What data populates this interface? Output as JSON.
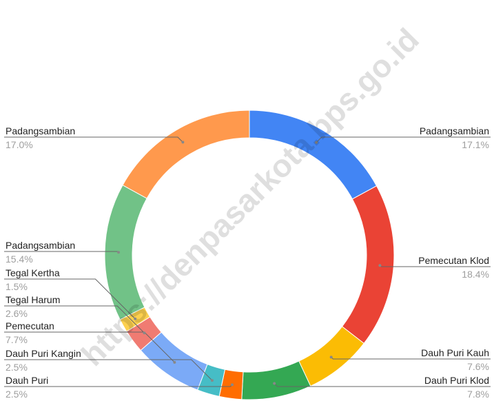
{
  "chart_data": {
    "type": "donut",
    "watermark": "https://denpasarkota.bps.go.id",
    "categories": [
      "Padangsambian",
      "Pemecutan Klod",
      "Dauh Puri Kauh",
      "Dauh Puri Klod",
      "Dauh Puri",
      "Dauh Puri Kangin",
      "Pemecutan",
      "Tegal Harum",
      "Tegal Kertha",
      "Padangsambian",
      "Padangsambian"
    ],
    "values": [
      17.1,
      18.4,
      7.6,
      7.8,
      2.5,
      2.5,
      7.7,
      2.6,
      1.5,
      15.4,
      17.0
    ],
    "value_labels": [
      "17.1%",
      "18.4%",
      "7.6%",
      "7.8%",
      "2.5%",
      "2.5%",
      "7.7%",
      "2.6%",
      "1.5%",
      "15.4%",
      "17.0%"
    ],
    "colors": [
      "#4285f4",
      "#ea4335",
      "#fbbc04",
      "#34a853",
      "#ff6d01",
      "#46bdc6",
      "#7baaf7",
      "#f07b72",
      "#fcd04f",
      "#71c287",
      "#ff994d"
    ]
  }
}
